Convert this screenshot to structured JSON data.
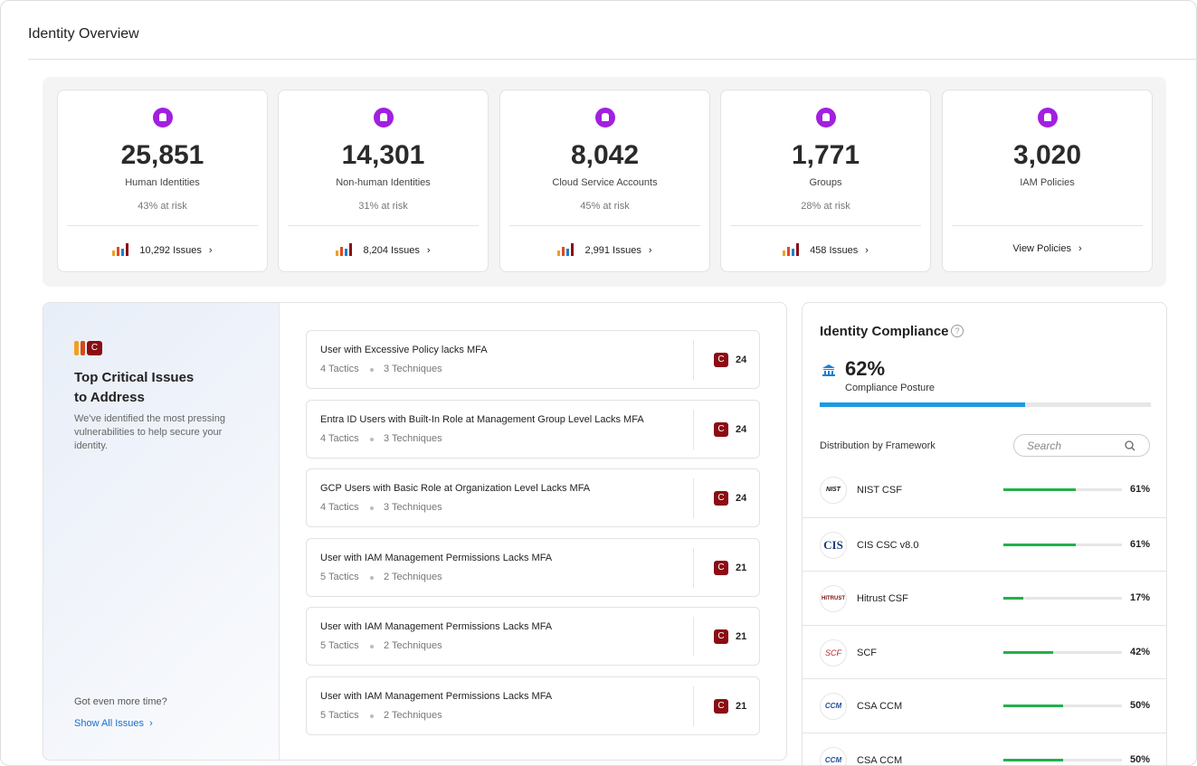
{
  "header": {
    "title": "Identity Overview"
  },
  "stats": [
    {
      "value": "25,851",
      "label": "Human Identities",
      "risk": "43% at risk",
      "link": "10,292 Issues"
    },
    {
      "value": "14,301",
      "label": "Non-human Identities",
      "risk": "31% at risk",
      "link": "8,204 Issues"
    },
    {
      "value": "8,042",
      "label": "Cloud Service Accounts",
      "risk": "45% at risk",
      "link": "2,991 Issues"
    },
    {
      "value": "1,771",
      "label": "Groups",
      "risk": "28% at risk",
      "link": "458 Issues"
    },
    {
      "value": "3,020",
      "label": "IAM Policies",
      "link": "View Policies"
    }
  ],
  "issues_panel": {
    "badge": "C",
    "title_line1": "Top Critical Issues",
    "title_line2": "to Address",
    "description": "We've identified the most pressing vulnerabilities to help secure your identity.",
    "more": "Got even more time?",
    "link": "Show All Issues"
  },
  "issues": [
    {
      "title": "User with Excessive Policy lacks MFA",
      "tactics": "4 Tactics",
      "techniques": "3 Techniques",
      "badge": "C",
      "score": "24"
    },
    {
      "title": "Entra ID Users with Built-In Role at Management Group Level Lacks MFA",
      "tactics": "4 Tactics",
      "techniques": "3 Techniques",
      "badge": "C",
      "score": "24"
    },
    {
      "title": "GCP Users with Basic Role at Organization Level Lacks MFA",
      "tactics": "4 Tactics",
      "techniques": "3 Techniques",
      "badge": "C",
      "score": "24"
    },
    {
      "title": "User with IAM Management Permissions Lacks MFA",
      "tactics": "5 Tactics",
      "techniques": "2 Techniques",
      "badge": "C",
      "score": "21"
    },
    {
      "title": "User with IAM Management Permissions Lacks MFA",
      "tactics": "5 Tactics",
      "techniques": "2 Techniques",
      "badge": "C",
      "score": "21"
    },
    {
      "title": "User with IAM Management Permissions Lacks MFA",
      "tactics": "5 Tactics",
      "techniques": "2 Techniques",
      "badge": "C",
      "score": "21"
    }
  ],
  "compliance": {
    "title": "Identity Compliance",
    "posture": 62,
    "posture_label": "62%",
    "posture_caption": "Compliance Posture",
    "distribution": "Distribution by Framework",
    "search": "Search",
    "frameworks": [
      {
        "logo": "NIST",
        "name": "NIST CSF",
        "percent": 61,
        "percent_label": "61%"
      },
      {
        "logo": "CIS",
        "name": "CIS CSC v8.0",
        "percent": 61,
        "percent_label": "61%"
      },
      {
        "logo": "HITRUST",
        "name": "Hitrust CSF",
        "percent": 17,
        "percent_label": "17%"
      },
      {
        "logo": "SCF",
        "name": "SCF",
        "percent": 42,
        "percent_label": "42%"
      },
      {
        "logo": "CCM",
        "name": "CSA CCM",
        "percent": 50,
        "percent_label": "50%"
      },
      {
        "logo": "CCM",
        "name": "CSA CCM",
        "percent": 50,
        "percent_label": "50%"
      }
    ]
  }
}
